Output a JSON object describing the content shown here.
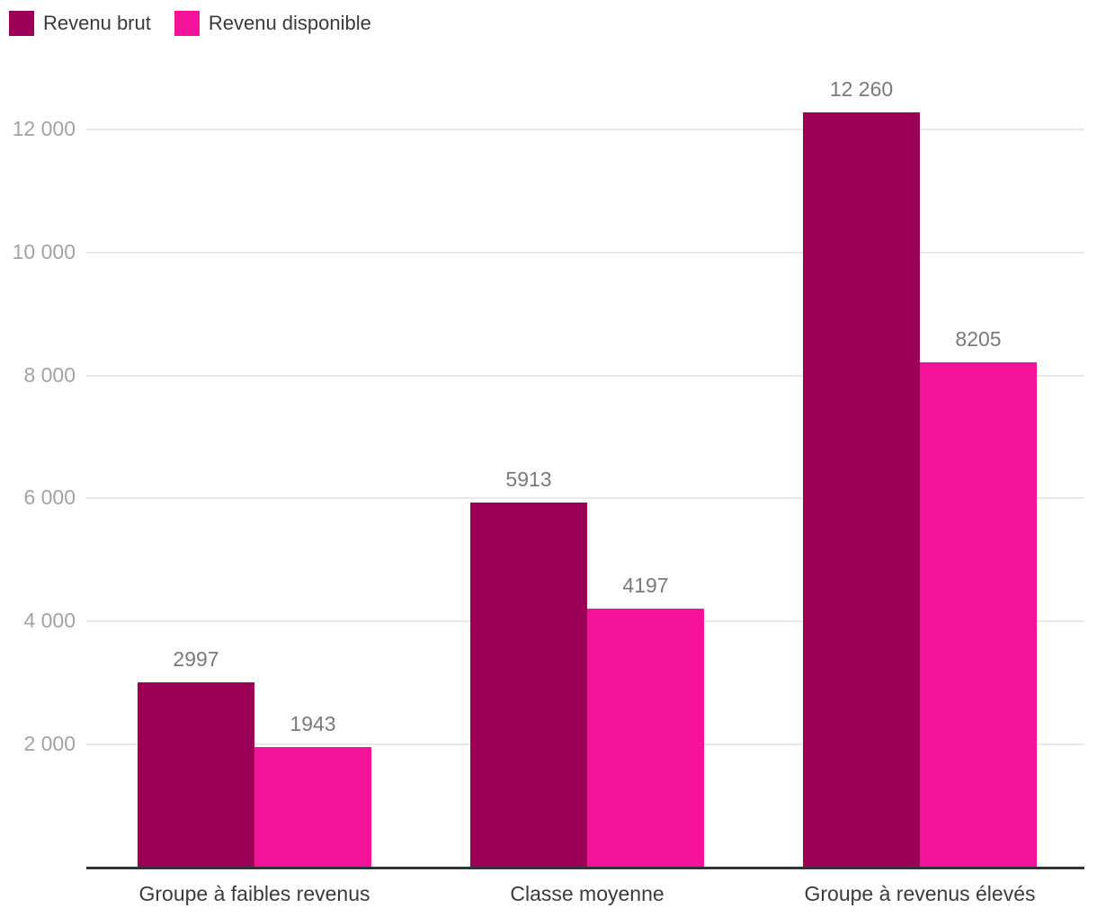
{
  "legend": {
    "items": [
      {
        "label": "Revenu brut",
        "color": "#9B0056"
      },
      {
        "label": "Revenu disponible",
        "color": "#F5129B"
      }
    ]
  },
  "chart_data": {
    "type": "bar",
    "title": "",
    "xlabel": "",
    "ylabel": "",
    "categories": [
      "Groupe à faibles revenus",
      "Classe moyenne",
      "Groupe à revenus élevés"
    ],
    "series": [
      {
        "name": "Revenu brut",
        "color": "#9B0056",
        "values": [
          2997,
          5913,
          12260
        ],
        "value_labels": [
          "2997",
          "5913",
          "12 260"
        ]
      },
      {
        "name": "Revenu disponible",
        "color": "#F5129B",
        "values": [
          1943,
          4197,
          8205
        ],
        "value_labels": [
          "1943",
          "4197",
          "8205"
        ]
      }
    ],
    "yticks": [
      {
        "value": 2000,
        "label": "2 000"
      },
      {
        "value": 4000,
        "label": "4 000"
      },
      {
        "value": 6000,
        "label": "6 000"
      },
      {
        "value": 8000,
        "label": "8 000"
      },
      {
        "value": 10000,
        "label": "10 000"
      },
      {
        "value": 12000,
        "label": "12 000"
      }
    ],
    "ylim": [
      0,
      13100
    ],
    "grid": true,
    "legend_position": "top-left"
  },
  "colors": {
    "background": "#ffffff",
    "axis": "#333333",
    "gridline": "#e9e9e9",
    "tick_label": "#a3a3a3",
    "value_label": "#7a7a7a",
    "category_label": "#3b3b3b",
    "legend_label": "#3a3a3a"
  }
}
